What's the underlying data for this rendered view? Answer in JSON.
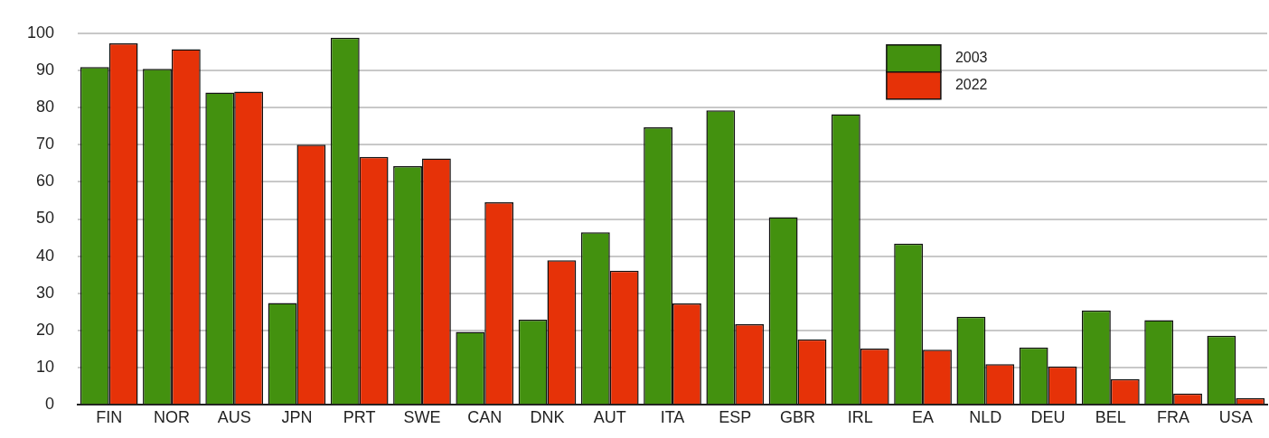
{
  "chart_data": {
    "type": "bar",
    "categories": [
      "FIN",
      "NOR",
      "AUS",
      "JPN",
      "PRT",
      "SWE",
      "CAN",
      "DNK",
      "AUT",
      "ITA",
      "ESP",
      "GBR",
      "IRL",
      "EA",
      "NLD",
      "DEU",
      "BEL",
      "FRA",
      "USA"
    ],
    "series": [
      {
        "name": "2003",
        "color": "#43910f",
        "values": [
          90.9,
          90.4,
          84.0,
          27.4,
          98.8,
          64.2,
          19.6,
          22.9,
          46.4,
          74.7,
          79.2,
          50.5,
          78.2,
          43.4,
          23.7,
          15.4,
          25.4,
          22.8,
          18.6
        ]
      },
      {
        "name": "2022",
        "color": "#e63208",
        "values": [
          97.3,
          95.7,
          84.3,
          70.0,
          66.7,
          66.3,
          54.5,
          38.9,
          36.1,
          27.3,
          21.7,
          17.6,
          15.1,
          14.8,
          10.9,
          10.3,
          6.9,
          3.0,
          1.8
        ]
      }
    ],
    "ylim": [
      0,
      100
    ],
    "yticks": [
      0,
      10,
      20,
      30,
      40,
      50,
      60,
      70,
      80,
      90,
      100
    ],
    "grid": "y",
    "legend": "top right"
  }
}
